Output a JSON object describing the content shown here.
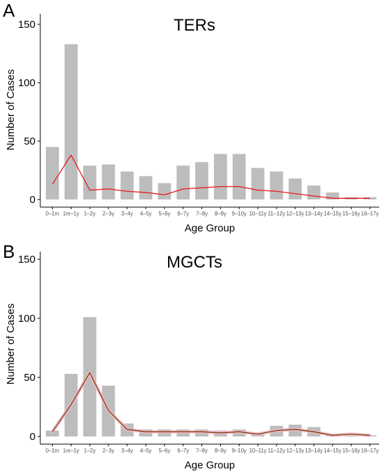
{
  "chart_data": [
    {
      "type": "bar",
      "panel": "A",
      "title": "TERs",
      "xlabel": "Age Group",
      "ylabel": "Number of Cases",
      "ylim": [
        0,
        160
      ],
      "yticks": [
        0,
        50,
        100,
        150
      ],
      "categories": [
        "0–1m",
        "1m–1y",
        "1–2y",
        "2–3y",
        "3–4y",
        "4–5y",
        "5–6y",
        "6–7y",
        "7–8y",
        "8–9y",
        "9–10y",
        "10–11y",
        "11–12y",
        "12–13y",
        "13–14y",
        "14–15y",
        "15–16y",
        "16–17y"
      ],
      "series": [
        {
          "type": "bar",
          "values": [
            45,
            133,
            29,
            30,
            24,
            20,
            14,
            29,
            32,
            39,
            39,
            27,
            24,
            18,
            12,
            6,
            2,
            2
          ]
        },
        {
          "type": "line",
          "values": [
            13,
            38,
            8,
            9,
            7,
            6,
            4,
            9,
            10,
            11,
            11,
            8,
            7,
            5,
            3,
            1,
            1,
            1
          ]
        }
      ],
      "colors": {
        "bar": "#bdbdbd",
        "line": "#e8191c"
      },
      "grid": false,
      "legend": "none"
    },
    {
      "type": "bar",
      "panel": "B",
      "title": "MGCTs",
      "xlabel": "Age Group",
      "ylabel": "Number of Cases",
      "ylim": [
        0,
        160
      ],
      "yticks": [
        0,
        50,
        100,
        150
      ],
      "categories": [
        "0–1m",
        "1m–1y",
        "1–2y",
        "2–3y",
        "3–4y",
        "4–5y",
        "5–6y",
        "6–7y",
        "7–8y",
        "8–9y",
        "9–10y",
        "10–11y",
        "11–12y",
        "12–13y",
        "13–14y",
        "14–15y",
        "15–16y",
        "16–17y"
      ],
      "series": [
        {
          "type": "bar",
          "values": [
            5,
            53,
            101,
            43,
            11,
            6,
            6,
            6,
            6,
            5,
            6,
            3,
            9,
            10,
            8,
            1,
            1,
            1
          ]
        },
        {
          "type": "line",
          "values": [
            4,
            27,
            54,
            22,
            6,
            4,
            4,
            4,
            4,
            3,
            4,
            2,
            5,
            6,
            4,
            1,
            2,
            1
          ]
        }
      ],
      "colors": {
        "bar": "#bdbdbd",
        "line": "#7a3e0c",
        "halo": "#f2b8c6"
      },
      "grid": false,
      "legend": "none"
    }
  ]
}
